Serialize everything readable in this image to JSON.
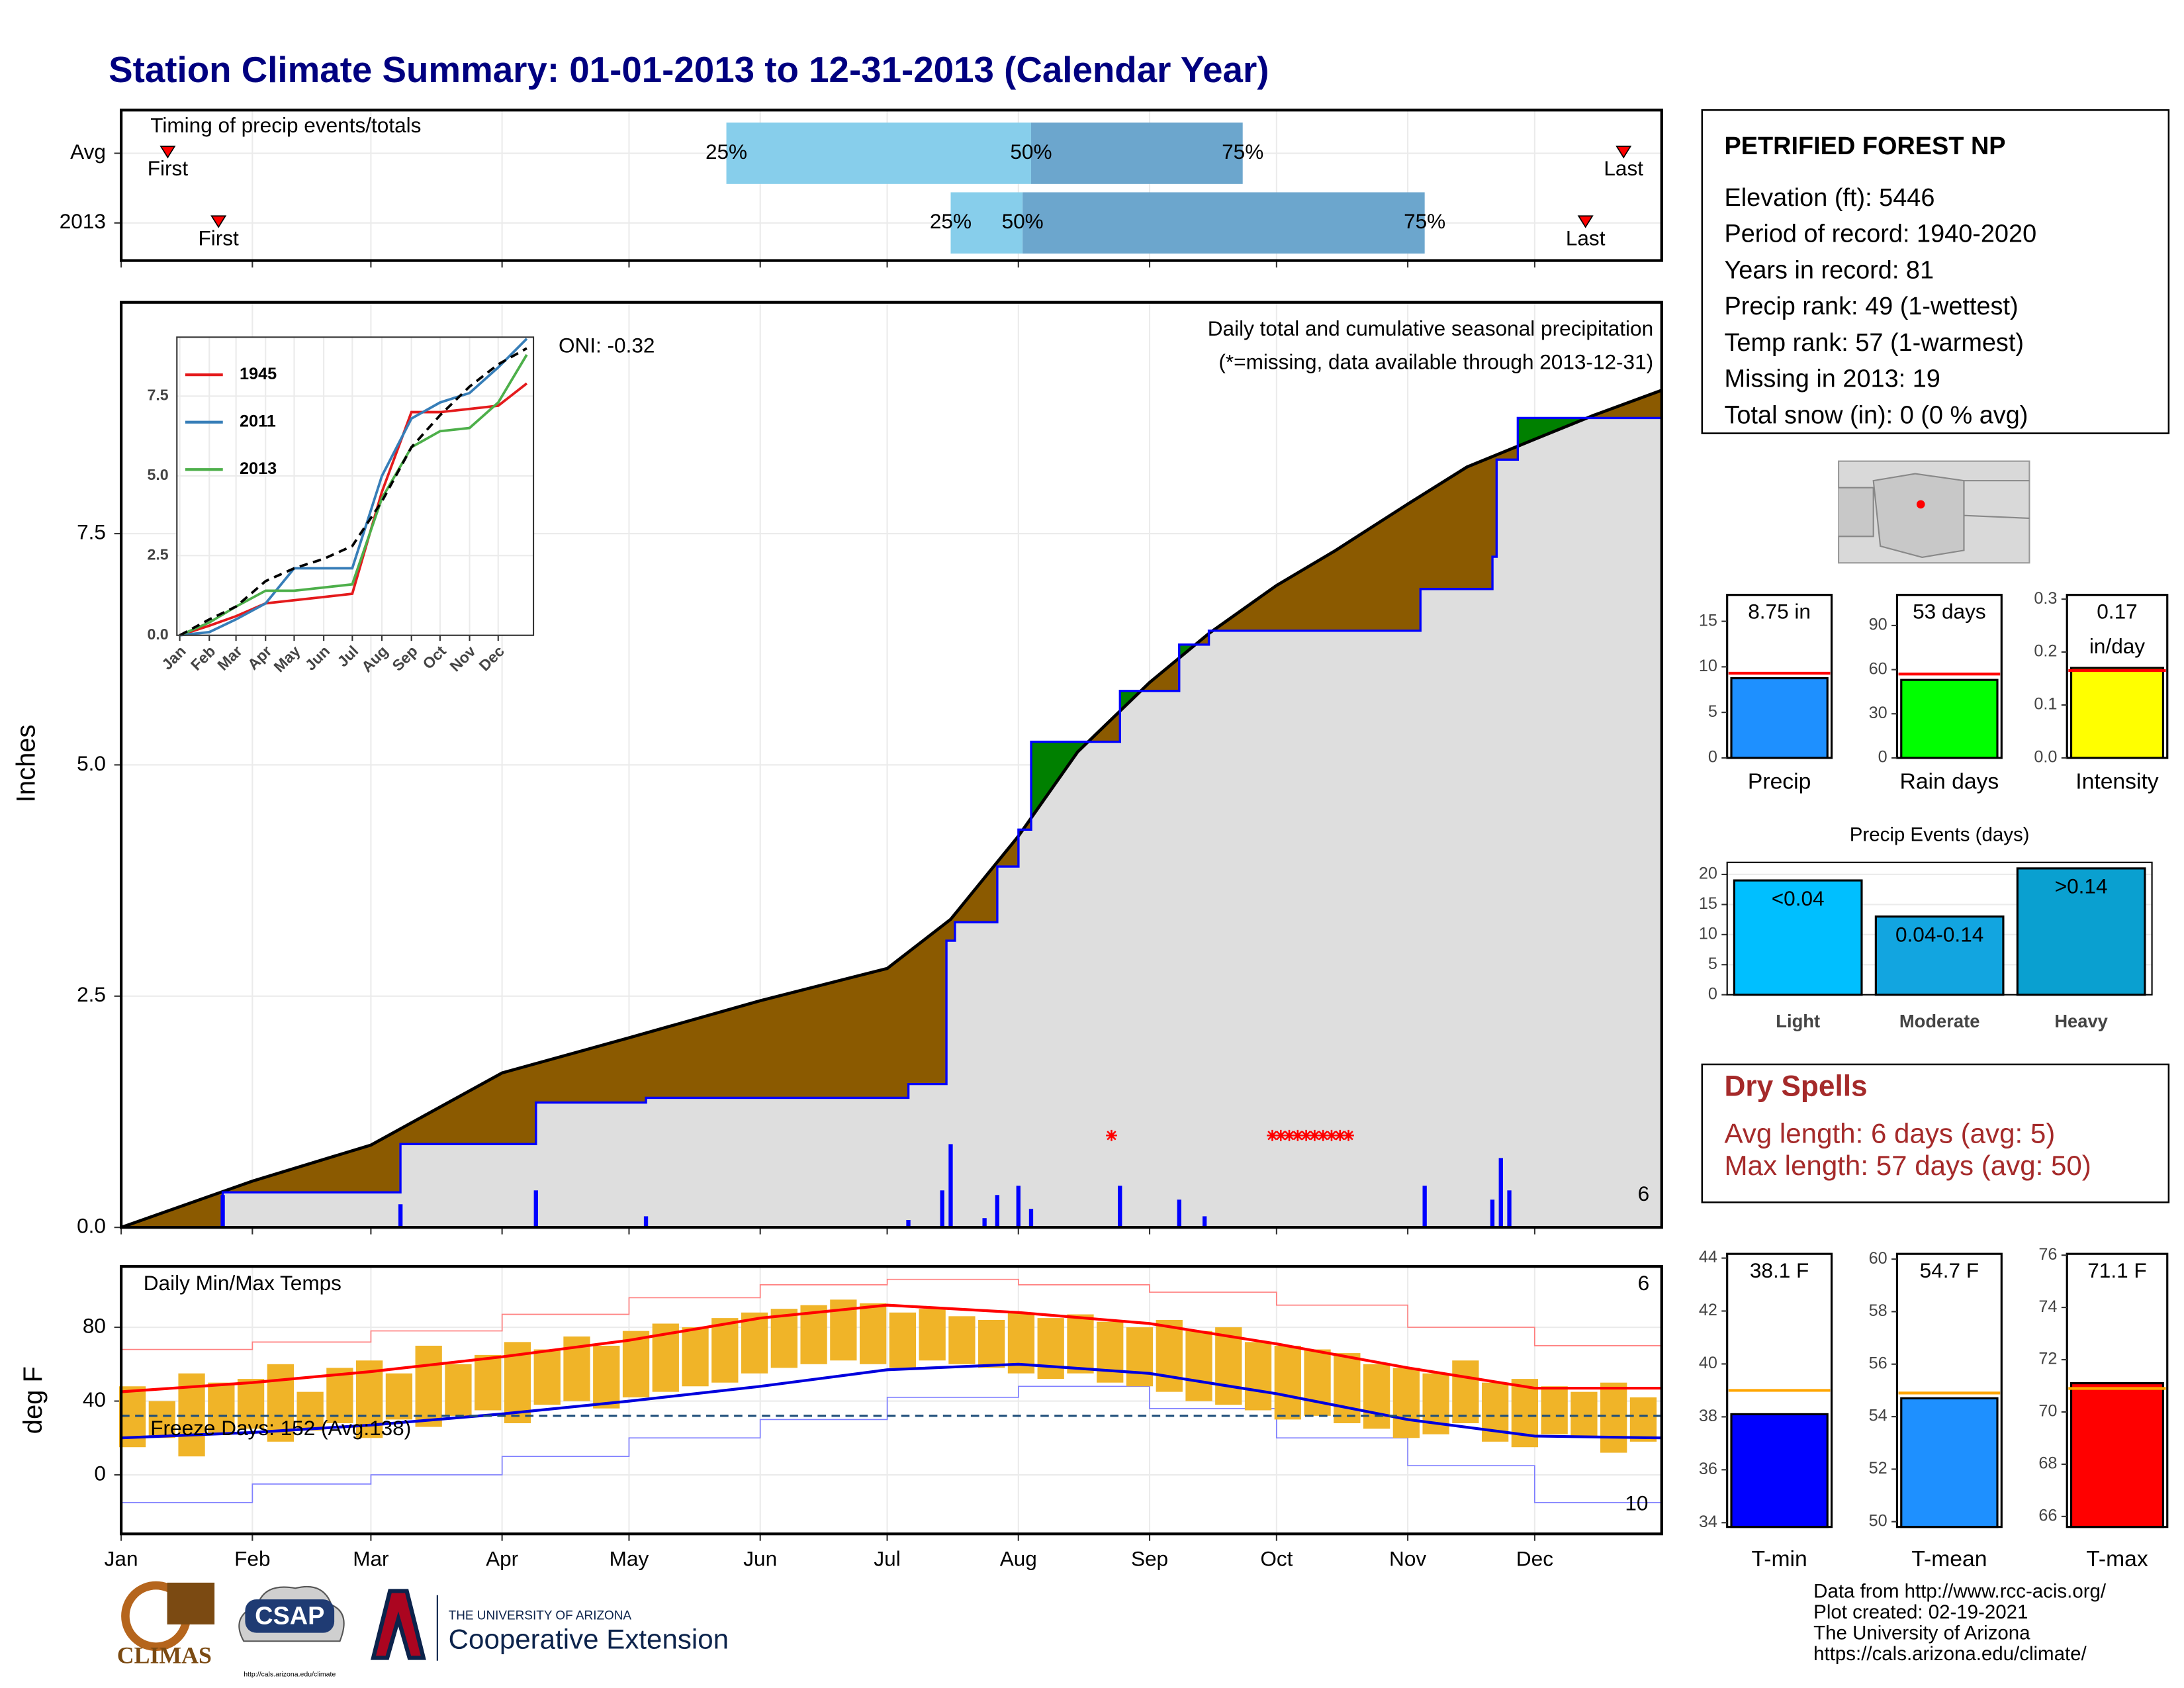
{
  "title": "Station Climate Summary: 01-01-2013 to 12-31-2013 (Calendar Year)",
  "station": {
    "name": "PETRIFIED FOREST NP",
    "lines": [
      "Elevation (ft): 5446",
      "Period of record: 1940-2020",
      "Years in record: 81",
      "Precip rank: 49 (1-wettest)",
      "Temp rank: 57 (1-warmest)",
      "Missing in 2013: 19",
      "Total snow (in): 0 (0 % avg)"
    ]
  },
  "dry_spells": {
    "title": "Dry Spells",
    "lines": [
      "Avg length: 6 days (avg: 5)",
      "Max length: 57 days (avg: 50)"
    ]
  },
  "footer": [
    "Data from http://www.rcc-acis.org/",
    "Plot created: 02-19-2021",
    "The University of Arizona",
    "https://cals.arizona.edu/climate/"
  ],
  "logos": {
    "climas": "CLIMAS",
    "csap": "CSAP",
    "csap_url": "http://cals.arizona.edu/climate",
    "university": "THE UNIVERSITY OF ARIZONA",
    "extension": "Cooperative Extension"
  },
  "chart_data": [
    {
      "type": "timing",
      "label": "Timing of precip events/totals",
      "first_label": "First",
      "last_label": "Last",
      "q_labels": [
        "25%",
        "50%",
        "75%"
      ],
      "colors": [
        "#87ceeb",
        "#6ca6cd"
      ],
      "rows": [
        {
          "name": "Avg",
          "first": 11,
          "q25": 143,
          "q50": 215,
          "q75": 265,
          "last": 355
        },
        {
          "name": "2013",
          "first": 23,
          "q25": 196,
          "q50": 213,
          "q75": 308,
          "last": 346
        }
      ]
    },
    {
      "type": "cumulative",
      "title": "Daily total and cumulative seasonal precipitation",
      "subtitle": "(*=missing, data available through 2013-12-31)",
      "oni": "ONI: -0.32",
      "count_label": "6",
      "ylabel": "Inches",
      "ylim": [
        0,
        10
      ],
      "yticks": [
        {
          "value": 0,
          "label": "0.0"
        },
        2.5,
        {
          "value": 5,
          "label": "5.0"
        },
        7.5
      ],
      "avg": {
        "color": "#000000",
        "x": [
          0,
          31,
          59,
          90,
          120,
          151,
          181,
          196,
          212,
          226,
          243,
          257,
          273,
          287,
          304,
          318,
          334,
          348,
          364
        ],
        "values": [
          0,
          0.5,
          0.89,
          1.67,
          2.05,
          2.45,
          2.8,
          3.33,
          4.23,
          5.14,
          5.89,
          6.42,
          6.94,
          7.32,
          7.82,
          8.22,
          8.52,
          8.78,
          9.05
        ]
      },
      "year": {
        "color": "#0000ff",
        "x": [
          0,
          24,
          66,
          98,
          124,
          186,
          195,
          197,
          207,
          212,
          215,
          236,
          250,
          257,
          307,
          324,
          325,
          330,
          364
        ],
        "values": [
          0,
          0.38,
          0.9,
          1.35,
          1.4,
          1.55,
          3.1,
          3.3,
          3.9,
          4.3,
          5.25,
          5.8,
          6.3,
          6.45,
          6.9,
          7.25,
          8.3,
          8.75,
          8.75
        ]
      },
      "daily": {
        "color": "#0000ff",
        "x": [
          24,
          66,
          98,
          124,
          186,
          194,
          196,
          204,
          207,
          212,
          215,
          236,
          250,
          256,
          308,
          324,
          326,
          328
        ],
        "values": [
          0.35,
          0.25,
          0.4,
          0.12,
          0.08,
          0.4,
          0.9,
          0.1,
          0.35,
          0.45,
          0.2,
          0.45,
          0.3,
          0.12,
          0.45,
          0.3,
          0.75,
          0.4
        ]
      },
      "missing_x": [
        234,
        272,
        274,
        276,
        278,
        280,
        282,
        284,
        286,
        288,
        290
      ],
      "fill_colors": {
        "deficit": "#8b5a00",
        "surplus": "#008000",
        "base": "#dedede"
      }
    },
    {
      "type": "line",
      "legend": "upper left",
      "xlim": [
        -3,
        371
      ],
      "ylim": [
        0,
        9.35
      ],
      "xticks": [
        {
          "value": 0,
          "label": "Jan"
        },
        {
          "value": 31,
          "label": "Feb"
        },
        {
          "value": 59,
          "label": "Mar"
        },
        {
          "value": 90,
          "label": "Apr"
        },
        {
          "value": 120,
          "label": "May"
        },
        {
          "value": 151,
          "label": "Jun"
        },
        {
          "value": 181,
          "label": "Jul"
        },
        {
          "value": 212,
          "label": "Aug"
        },
        {
          "value": 243,
          "label": "Sep"
        },
        {
          "value": 273,
          "label": "Oct"
        },
        {
          "value": 304,
          "label": "Nov"
        },
        {
          "value": 334,
          "label": "Dec"
        }
      ],
      "yticks": [
        {
          "value": 0,
          "label": "0.0"
        },
        2.5,
        {
          "value": 5,
          "label": "5.0"
        },
        7.5
      ],
      "x": [
        0,
        31,
        59,
        90,
        120,
        151,
        181,
        212,
        243,
        273,
        304,
        334,
        364
      ],
      "avg_values": [
        0,
        0.5,
        0.9,
        1.7,
        2.1,
        2.4,
        2.8,
        4.2,
        5.9,
        6.9,
        7.8,
        8.5,
        9.0
      ],
      "series": [
        {
          "name": "1945",
          "color": "#e41a1c",
          "values": [
            0,
            0.3,
            0.6,
            1.0,
            1.1,
            1.2,
            1.3,
            4.5,
            7.0,
            7.0,
            7.1,
            7.2,
            7.9
          ]
        },
        {
          "name": "2011",
          "color": "#377eb8",
          "values": [
            0,
            0.1,
            0.5,
            1.0,
            2.1,
            2.1,
            2.1,
            5.0,
            6.8,
            7.3,
            7.6,
            8.4,
            9.3
          ]
        },
        {
          "name": "2013",
          "color": "#4daf4a",
          "values": [
            0,
            0.4,
            0.9,
            1.4,
            1.4,
            1.5,
            1.6,
            4.3,
            5.9,
            6.4,
            6.5,
            7.3,
            8.8
          ]
        }
      ]
    },
    {
      "type": "temperature",
      "title": "Daily Min/Max Temps",
      "ylabel": "deg F",
      "max_count": "6",
      "min_count": "10",
      "xlim": [
        0,
        364
      ],
      "ylim": [
        -32,
        113
      ],
      "yticks": [
        0,
        40,
        80
      ],
      "xticks": [
        {
          "value": 0,
          "label": "Jan"
        },
        {
          "value": 31,
          "label": "Feb"
        },
        {
          "value": 59,
          "label": "Mar"
        },
        {
          "value": 90,
          "label": "Apr"
        },
        {
          "value": 120,
          "label": "May"
        },
        {
          "value": 151,
          "label": "Jun"
        },
        {
          "value": 181,
          "label": "Jul"
        },
        {
          "value": 212,
          "label": "Aug"
        },
        {
          "value": 243,
          "label": "Sep"
        },
        {
          "value": 273,
          "label": "Oct"
        },
        {
          "value": 304,
          "label": "Nov"
        },
        {
          "value": 334,
          "label": "Dec"
        }
      ],
      "freeze": {
        "value": 32,
        "label": "Freeze Days: 152 (Avg:138)",
        "color": "#1f4e79"
      },
      "normal_x": [
        0,
        31,
        59,
        90,
        120,
        151,
        181,
        212,
        243,
        273,
        304,
        334,
        364
      ],
      "avg_max": {
        "color": "#ff0000",
        "values": [
          45,
          50,
          56,
          64,
          73,
          85,
          92,
          88,
          82,
          71,
          58,
          47,
          47
        ]
      },
      "avg_min": {
        "color": "#0000dd",
        "values": [
          20,
          23,
          27,
          33,
          40,
          48,
          57,
          60,
          55,
          44,
          30,
          21,
          20
        ]
      },
      "record_max": {
        "color": "#ff8080",
        "values": [
          68,
          72,
          78,
          87,
          96,
          103,
          106,
          103,
          99,
          92,
          80,
          70,
          68
        ]
      },
      "record_min": {
        "color": "#8080ff",
        "values": [
          -15,
          -5,
          0,
          10,
          20,
          30,
          42,
          48,
          36,
          20,
          5,
          -15,
          -5
        ]
      },
      "daily_color": "#f0b428",
      "daily_x": [
        3,
        10,
        17,
        24,
        31,
        38,
        45,
        52,
        59,
        66,
        73,
        80,
        87,
        94,
        101,
        108,
        115,
        122,
        129,
        136,
        143,
        150,
        157,
        164,
        171,
        178,
        185,
        192,
        199,
        206,
        213,
        220,
        227,
        234,
        241,
        248,
        255,
        262,
        269,
        276,
        283,
        290,
        297,
        304,
        311,
        318,
        325,
        332,
        339,
        346,
        353,
        360
      ],
      "daily_max": [
        48,
        40,
        55,
        50,
        52,
        60,
        45,
        58,
        62,
        55,
        70,
        60,
        65,
        72,
        68,
        75,
        70,
        78,
        82,
        80,
        85,
        88,
        90,
        92,
        95,
        93,
        88,
        90,
        86,
        84,
        88,
        85,
        87,
        83,
        80,
        84,
        78,
        80,
        72,
        70,
        68,
        66,
        60,
        58,
        55,
        62,
        50,
        52,
        48,
        45,
        50,
        42
      ],
      "daily_min": [
        15,
        20,
        10,
        22,
        25,
        18,
        24,
        28,
        20,
        30,
        26,
        32,
        35,
        28,
        38,
        40,
        36,
        42,
        45,
        48,
        50,
        55,
        58,
        60,
        62,
        60,
        58,
        62,
        60,
        58,
        55,
        52,
        55,
        50,
        48,
        45,
        40,
        38,
        35,
        30,
        32,
        28,
        25,
        20,
        22,
        28,
        18,
        15,
        22,
        20,
        12,
        18
      ]
    },
    {
      "type": "summary_bar",
      "xlabel": "Precip",
      "value": 8.75,
      "value_label": "8.75 in",
      "avg": 9.3,
      "avg_color": "#ff0000",
      "color": "#1e90ff",
      "ylim": [
        0,
        17.9
      ],
      "yticks": [
        0,
        5,
        10,
        15
      ]
    },
    {
      "type": "summary_bar",
      "xlabel": "Rain days",
      "value": 53,
      "value_label": "53 days",
      "avg": 57,
      "avg_color": "#ff0000",
      "color": "#00ff00",
      "ylim": [
        0,
        110.8
      ],
      "yticks": [
        0,
        30,
        60,
        90
      ]
    },
    {
      "type": "summary_bar",
      "xlabel": "Intensity",
      "value": 0.17,
      "value_label": "0.17",
      "unit": "in/day",
      "avg": 0.165,
      "avg_color": "#ff0000",
      "color": "#ffff00",
      "ylim": [
        0,
        0.308
      ],
      "yticks": [
        {
          "value": 0,
          "label": "0.0"
        },
        0.1,
        0.2,
        0.3
      ]
    },
    {
      "type": "bar",
      "title": "Precip Events (days)",
      "categories": [
        "Light",
        "Moderate",
        "Heavy"
      ],
      "values": [
        19,
        13,
        21
      ],
      "bin_labels": [
        "<0.04",
        "0.04-0.14",
        ">0.14"
      ],
      "colors": [
        "#00bfff",
        "#12a5e0",
        "#0aa0d0"
      ],
      "ylim": [
        0,
        22
      ],
      "yticks": [
        0,
        5,
        10,
        15,
        20
      ]
    },
    {
      "type": "summary_bar",
      "xlabel": "T-min",
      "value": 38.1,
      "value_label": "38.1 F",
      "avg": 39.0,
      "avg_color": "#ffa500",
      "color": "#0000ff",
      "ylim": [
        33.84,
        44.16
      ],
      "yticks": [
        34,
        36,
        38,
        40,
        42,
        44
      ]
    },
    {
      "type": "summary_bar",
      "xlabel": "T-mean",
      "value": 54.7,
      "value_label": "54.7 F",
      "avg": 54.9,
      "avg_color": "#ffa500",
      "color": "#1e90ff",
      "ylim": [
        49.8,
        60.2
      ],
      "yticks": [
        50,
        52,
        54,
        56,
        58,
        60
      ]
    },
    {
      "type": "summary_bar",
      "xlabel": "T-max",
      "value": 71.1,
      "value_label": "71.1 F",
      "avg": 70.9,
      "avg_color": "#ffa500",
      "color": "#ff0000",
      "ylim": [
        65.6,
        76.05
      ],
      "yticks": [
        66,
        68,
        70,
        72,
        74,
        76
      ]
    }
  ]
}
